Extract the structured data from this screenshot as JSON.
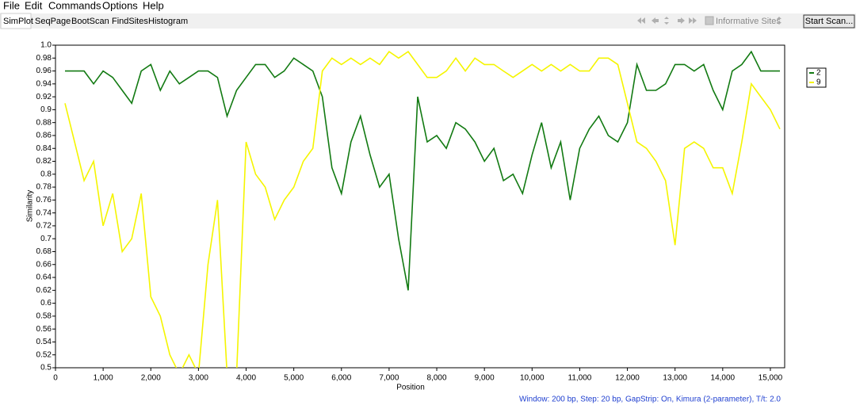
{
  "menu": [
    "File",
    "Edit",
    "Commands",
    "Options",
    "Help"
  ],
  "tabs": [
    "SimPlot",
    "SeqPage",
    "BootScan",
    "FindSites",
    "Histogram"
  ],
  "toolbar": {
    "checkbox_label": "Informative Sites",
    "button": "Start Scan..."
  },
  "chart_data": {
    "type": "line",
    "xlabel": "Position",
    "ylabel": "Similarity",
    "x": [
      200,
      400,
      600,
      800,
      1000,
      1200,
      1400,
      1600,
      1800,
      2000,
      2200,
      2400,
      2600,
      2800,
      3000,
      3200,
      3400,
      3600,
      3800,
      4000,
      4200,
      4400,
      4600,
      4800,
      5000,
      5200,
      5400,
      5600,
      5800,
      6000,
      6200,
      6400,
      6600,
      6800,
      7000,
      7200,
      7400,
      7600,
      7800,
      8000,
      8200,
      8400,
      8600,
      8800,
      9000,
      9200,
      9400,
      9600,
      9800,
      10000,
      10200,
      10400,
      10600,
      10800,
      11000,
      11200,
      11400,
      11600,
      11800,
      12000,
      12200,
      12400,
      12600,
      12800,
      13000,
      13200,
      13400,
      13600,
      13800,
      14000,
      14200,
      14400,
      14600,
      14800,
      15000,
      15200
    ],
    "series": [
      {
        "name": "2",
        "color": "#127a12",
        "values": [
          0.96,
          0.96,
          0.96,
          0.94,
          0.96,
          0.95,
          0.93,
          0.91,
          0.96,
          0.97,
          0.93,
          0.96,
          0.94,
          0.95,
          0.96,
          0.96,
          0.95,
          0.89,
          0.93,
          0.95,
          0.97,
          0.97,
          0.95,
          0.96,
          0.98,
          0.97,
          0.96,
          0.92,
          0.81,
          0.77,
          0.85,
          0.89,
          0.83,
          0.78,
          0.8,
          0.7,
          0.62,
          0.92,
          0.85,
          0.86,
          0.84,
          0.88,
          0.87,
          0.85,
          0.82,
          0.84,
          0.79,
          0.8,
          0.77,
          0.83,
          0.88,
          0.81,
          0.85,
          0.76,
          0.84,
          0.87,
          0.89,
          0.86,
          0.85,
          0.88,
          0.97,
          0.93,
          0.93,
          0.94,
          0.97,
          0.97,
          0.96,
          0.97,
          0.93,
          0.9,
          0.96,
          0.97,
          0.99,
          0.96,
          0.96,
          0.96
        ]
      },
      {
        "name": "9",
        "color": "#f5f500",
        "values": [
          0.91,
          0.85,
          0.79,
          0.82,
          0.72,
          0.77,
          0.68,
          0.7,
          0.77,
          0.61,
          0.58,
          0.52,
          0.49,
          0.52,
          0.49,
          0.66,
          0.76,
          0.49,
          0.49,
          0.85,
          0.8,
          0.78,
          0.73,
          0.76,
          0.78,
          0.82,
          0.84,
          0.96,
          0.98,
          0.97,
          0.98,
          0.97,
          0.98,
          0.97,
          0.99,
          0.98,
          0.99,
          0.97,
          0.95,
          0.95,
          0.96,
          0.98,
          0.96,
          0.98,
          0.97,
          0.97,
          0.96,
          0.95,
          0.96,
          0.97,
          0.96,
          0.97,
          0.96,
          0.97,
          0.96,
          0.96,
          0.98,
          0.98,
          0.97,
          0.91,
          0.85,
          0.84,
          0.82,
          0.79,
          0.69,
          0.84,
          0.85,
          0.84,
          0.81,
          0.81,
          0.77,
          0.85,
          0.94,
          0.92,
          0.9,
          0.87
        ]
      }
    ],
    "xlim": [
      0,
      15300
    ],
    "ylim": [
      0.5,
      1
    ],
    "xticks": [
      0,
      {
        "value": 1000,
        "label": "1,000"
      },
      {
        "value": 2000,
        "label": "2,000"
      },
      {
        "value": 3000,
        "label": "3,000"
      },
      {
        "value": 4000,
        "label": "4,000"
      },
      {
        "value": 5000,
        "label": "5,000"
      },
      {
        "value": 6000,
        "label": "6,000"
      },
      {
        "value": 7000,
        "label": "7,000"
      },
      {
        "value": 8000,
        "label": "8,000"
      },
      {
        "value": 9000,
        "label": "9,000"
      },
      {
        "value": 10000,
        "label": "10,000"
      },
      {
        "value": 11000,
        "label": "11,000"
      },
      {
        "value": 12000,
        "label": "12,000"
      },
      {
        "value": 13000,
        "label": "13,000"
      },
      {
        "value": 14000,
        "label": "14,000"
      },
      {
        "value": 15000,
        "label": "15,000"
      }
    ],
    "yticks": [
      0.5,
      0.52,
      0.54,
      0.56,
      0.58,
      0.6,
      0.62,
      0.64,
      0.66,
      0.68,
      0.7,
      0.72,
      0.74,
      0.76,
      0.78,
      0.8,
      0.82,
      0.84,
      0.86,
      0.88,
      0.9,
      0.92,
      0.94,
      0.96,
      0.98,
      {
        "value": 1,
        "label": "1.0"
      }
    ],
    "legend": "right"
  },
  "status": "Window: 200 bp, Step: 20 bp, GapStrip: On, Kimura (2-parameter), T/t: 2.0"
}
